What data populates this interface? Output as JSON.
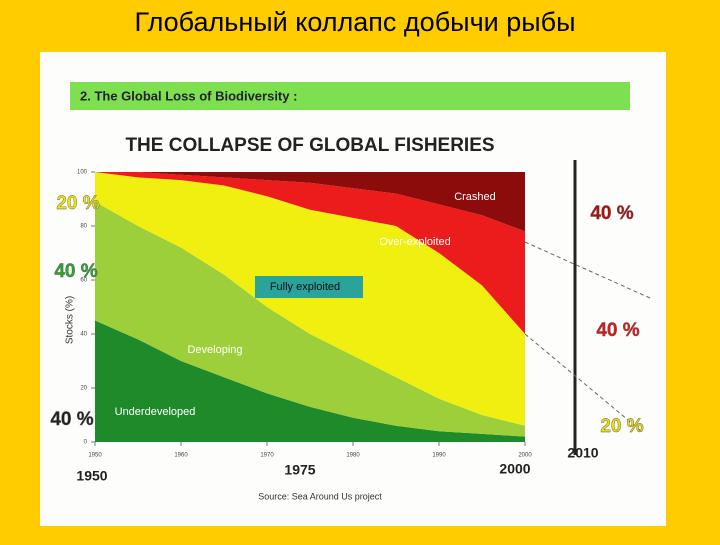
{
  "slide_title": "Глобальный коллапс добычи рыбы",
  "section_banner": "2. The Global Loss of Biodiversity :",
  "chart_data": {
    "type": "stacked-area",
    "title": "THE COLLAPSE OF GLOBAL FISHERIES",
    "y_label": "Stocks (%)",
    "x": [
      1950,
      1955,
      1960,
      1965,
      1970,
      1975,
      1980,
      1985,
      1990,
      1995,
      2000
    ],
    "xlim": [
      1950,
      2000
    ],
    "xticks": [
      1950,
      1960,
      1970,
      1980,
      1990,
      2000
    ],
    "ylim": [
      0,
      100
    ],
    "yticks": [
      0,
      20,
      40,
      60,
      80,
      100
    ],
    "series": [
      {
        "name": "Underdeveloped",
        "color": "#1f8a2a",
        "values": [
          45,
          38,
          30,
          24,
          18,
          13,
          9,
          6,
          4,
          3,
          2
        ]
      },
      {
        "name": "Developing",
        "color": "#9ccf3a",
        "values": [
          44,
          42,
          42,
          38,
          32,
          27,
          23,
          18,
          12,
          7,
          4
        ]
      },
      {
        "name": "Fully exploited",
        "color": "#f0ef10",
        "values": [
          11,
          18,
          25,
          33,
          41,
          46,
          51,
          56,
          54,
          48,
          34
        ]
      },
      {
        "name": "Over-exploited",
        "color": "#ec1c1c",
        "values": [
          0,
          2,
          2,
          3,
          6,
          10,
          11,
          12,
          18,
          26,
          38
        ]
      },
      {
        "name": "Crashed",
        "color": "#8c0c0c",
        "values": [
          0,
          0,
          1,
          2,
          3,
          4,
          6,
          8,
          12,
          16,
          22
        ]
      }
    ],
    "annotations": [
      "20 %",
      "40 %",
      "40 %",
      "40 %",
      "40 %",
      "20 %"
    ],
    "year_labels": [
      1950,
      1975,
      2000,
      2010
    ],
    "source": "Source: Sea Around Us project"
  }
}
